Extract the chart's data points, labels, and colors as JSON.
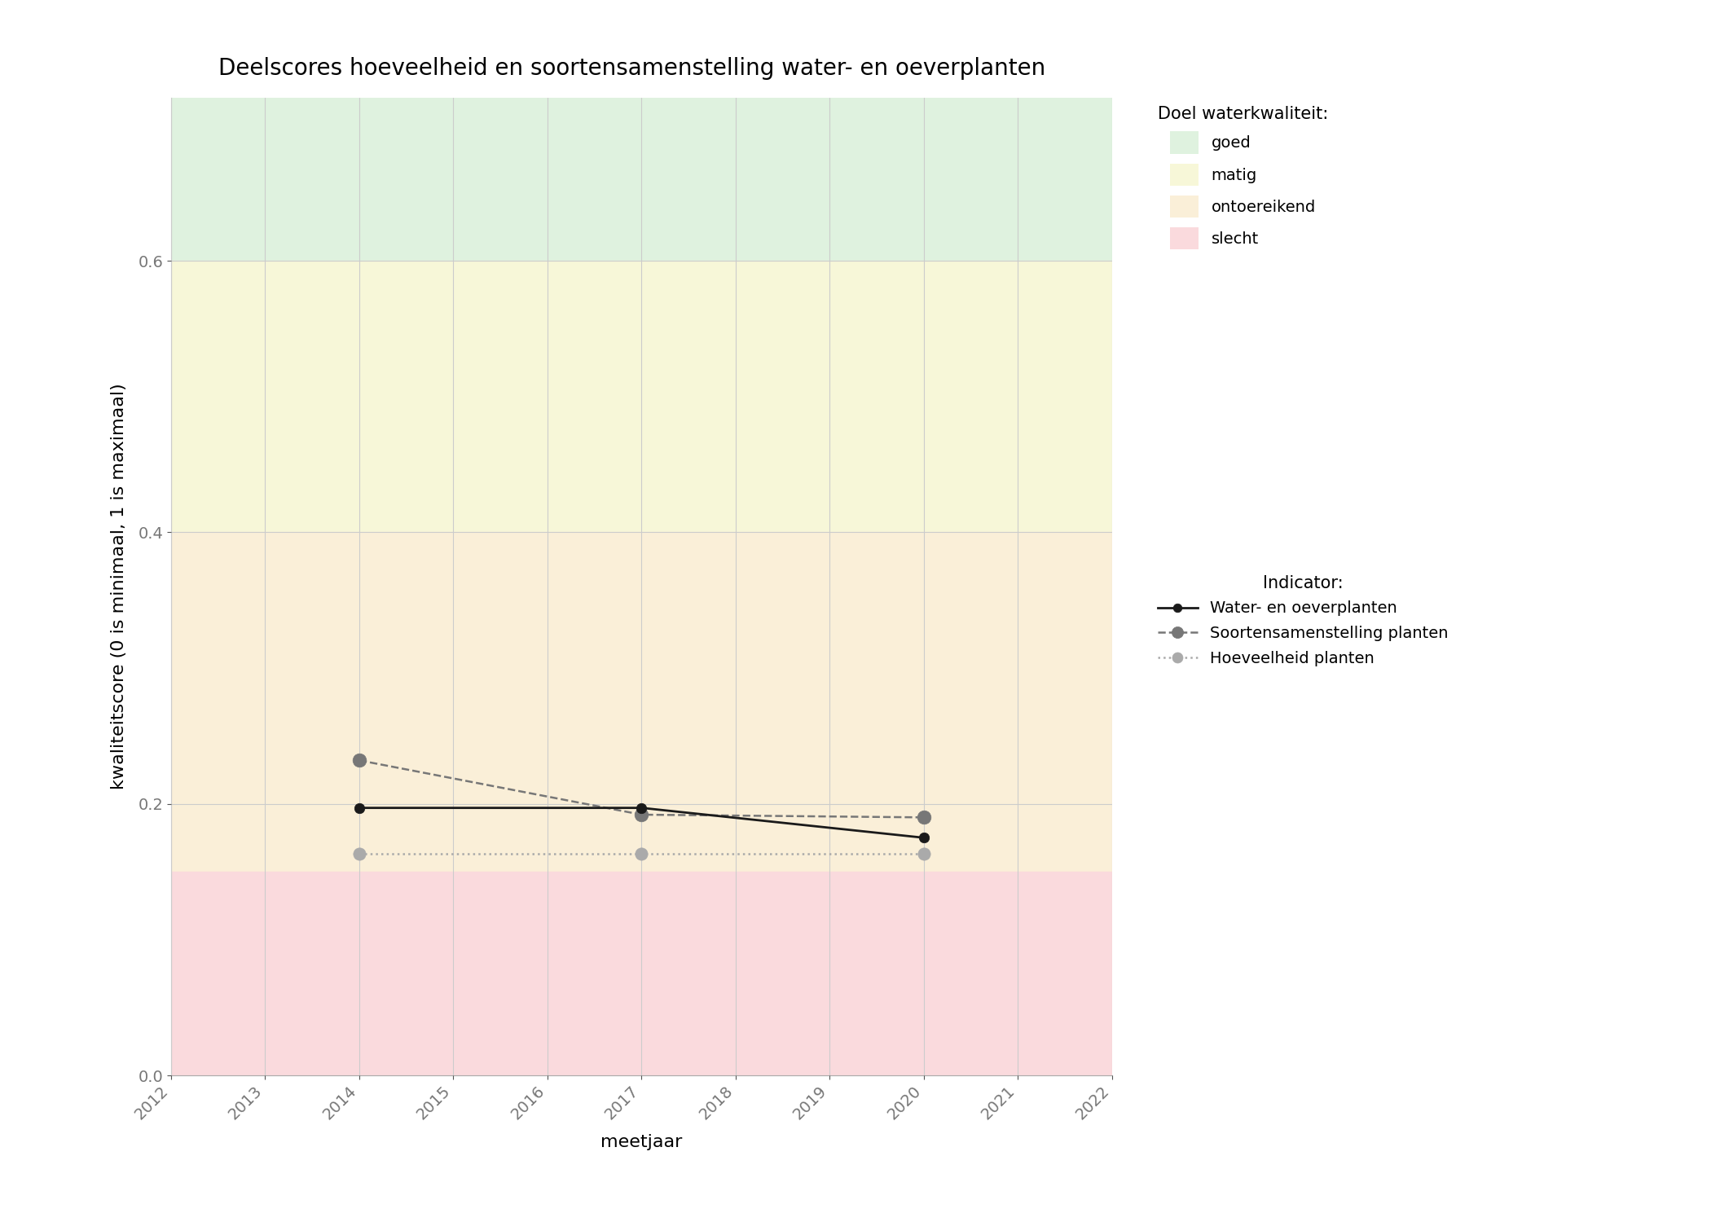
{
  "title": "Deelscores hoeveelheid en soortensamenstelling water- en oeverplanten",
  "xlabel": "meetjaar",
  "ylabel": "kwaliteitscore (0 is minimaal, 1 is maximaal)",
  "xlim": [
    2012,
    2022
  ],
  "ylim": [
    0.0,
    0.72
  ],
  "yticks": [
    0.0,
    0.2,
    0.4,
    0.6
  ],
  "xticks": [
    2012,
    2013,
    2014,
    2015,
    2016,
    2017,
    2018,
    2019,
    2020,
    2021,
    2022
  ],
  "bg_zones": [
    {
      "ymin": 0.6,
      "ymax": 0.72,
      "color": "#dff2df",
      "label": "goed"
    },
    {
      "ymin": 0.4,
      "ymax": 0.6,
      "color": "#f7f7d8",
      "label": "matig"
    },
    {
      "ymin": 0.15,
      "ymax": 0.4,
      "color": "#faefd8",
      "label": "ontoereikend"
    },
    {
      "ymin": 0.0,
      "ymax": 0.15,
      "color": "#fadadd",
      "label": "slecht"
    }
  ],
  "series": [
    {
      "label": "Water- en oeverplanten",
      "x": [
        2014,
        2017,
        2020
      ],
      "y": [
        0.197,
        0.197,
        0.175
      ],
      "color": "#1a1a1a",
      "linestyle": "solid",
      "linewidth": 2.0,
      "markersize": 9,
      "markerfacecolor": "#1a1a1a",
      "markeredgecolor": "#1a1a1a",
      "zorder": 5
    },
    {
      "label": "Soortensamenstelling planten",
      "x": [
        2014,
        2017,
        2020
      ],
      "y": [
        0.232,
        0.192,
        0.19
      ],
      "color": "#777777",
      "linestyle": "dashed",
      "linewidth": 1.8,
      "markersize": 12,
      "markerfacecolor": "#777777",
      "markeredgecolor": "#777777",
      "zorder": 4
    },
    {
      "label": "Hoeveelheid planten",
      "x": [
        2014,
        2017,
        2020
      ],
      "y": [
        0.163,
        0.163,
        0.163
      ],
      "color": "#aaaaaa",
      "linestyle": "dotted",
      "linewidth": 1.8,
      "markersize": 11,
      "markerfacecolor": "#aaaaaa",
      "markeredgecolor": "#aaaaaa",
      "zorder": 3
    }
  ],
  "legend_bg_colors": [
    "#dff2df",
    "#f7f7d8",
    "#faefd8",
    "#fadadd"
  ],
  "legend_bg_labels": [
    "goed",
    "matig",
    "ontoereikend",
    "slecht"
  ],
  "legend_title1": "Doel waterkwaliteit:",
  "legend_title2": "Indicator:",
  "grid_color": "#cccccc",
  "background_color": "#ffffff",
  "title_fontsize": 20,
  "axis_label_fontsize": 16,
  "tick_fontsize": 14,
  "legend_fontsize": 14,
  "legend_title_fontsize": 15
}
